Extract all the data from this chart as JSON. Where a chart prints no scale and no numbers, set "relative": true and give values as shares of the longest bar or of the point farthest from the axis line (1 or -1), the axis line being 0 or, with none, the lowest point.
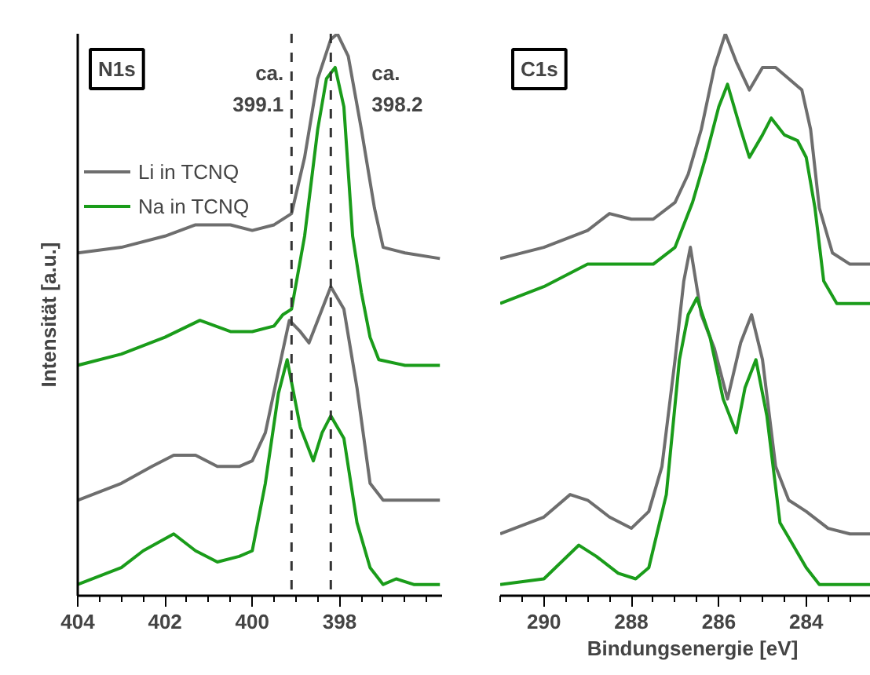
{
  "chart_data": [
    {
      "type": "line",
      "relative": true,
      "title": "N1s",
      "ylabel": "Intensität [a.u.]",
      "legend": "top left",
      "tick_labels": "x",
      "line_style": "solid",
      "xlim": [
        404,
        395.65
      ],
      "xticks": [
        404,
        {
          "value": 403.5,
          "label": null
        },
        {
          "value": 403,
          "label": null
        },
        {
          "value": 402.5,
          "label": null
        },
        402,
        {
          "value": 401.5,
          "label": null
        },
        {
          "value": 401,
          "label": null
        },
        {
          "value": 400.5,
          "label": null
        },
        400,
        {
          "value": 399.5,
          "label": null
        },
        {
          "value": 399,
          "label": null
        },
        {
          "value": 398.5,
          "label": null
        },
        398,
        {
          "value": 397.5,
          "label": null
        },
        {
          "value": 397,
          "label": null
        },
        {
          "value": 396.5,
          "label": null
        },
        {
          "value": 396,
          "label": null
        }
      ],
      "ref_lines": [
        {
          "axis": "x",
          "value": 399.1,
          "label": "ca. 399.1",
          "line_style": "dashed",
          "color": "#333333"
        },
        {
          "axis": "x",
          "value": 398.2,
          "label": "ca. 398.2",
          "line_style": "dashed",
          "color": "#333333"
        }
      ],
      "series": [
        {
          "name": "Li in TCNQ",
          "color": "#6e6e6e",
          "x": [
            404,
            403,
            402,
            401.3,
            400.5,
            400,
            399.5,
            399.1,
            398.8,
            398.5,
            398.2,
            398.05,
            397.8,
            397.5,
            397.2,
            397,
            396.5,
            395.7
          ],
          "values": [
            0.61,
            0.62,
            0.64,
            0.66,
            0.66,
            0.65,
            0.66,
            0.68,
            0.78,
            0.92,
            0.99,
            1.0,
            0.96,
            0.83,
            0.69,
            0.62,
            0.61,
            0.6
          ]
        },
        {
          "name": "Na in TCNQ",
          "color": "#1a9c1a",
          "x": [
            404,
            403,
            402,
            401.2,
            400.5,
            400,
            399.5,
            399.3,
            399.1,
            398.8,
            398.5,
            398.3,
            398.1,
            397.9,
            397.7,
            397.5,
            397.3,
            397.1,
            396.5,
            395.7
          ],
          "values": [
            0.41,
            0.43,
            0.46,
            0.49,
            0.47,
            0.47,
            0.48,
            0.5,
            0.51,
            0.64,
            0.83,
            0.92,
            0.94,
            0.87,
            0.64,
            0.54,
            0.46,
            0.42,
            0.41,
            0.41
          ]
        },
        {
          "color": "#6e6e6e",
          "x": [
            404,
            403,
            402.3,
            401.8,
            401.3,
            400.8,
            400.3,
            400,
            399.7,
            399.4,
            399.15,
            398.9,
            398.7,
            398.5,
            398.2,
            397.9,
            397.6,
            397.3,
            397,
            396.5,
            395.7
          ],
          "values": [
            0.17,
            0.2,
            0.23,
            0.25,
            0.25,
            0.23,
            0.23,
            0.24,
            0.29,
            0.4,
            0.49,
            0.47,
            0.45,
            0.49,
            0.55,
            0.51,
            0.37,
            0.2,
            0.17,
            0.17,
            0.17
          ]
        },
        {
          "color": "#1a9c1a",
          "x": [
            404,
            403,
            402.5,
            401.8,
            401.3,
            400.8,
            400.3,
            400,
            399.7,
            399.4,
            399.2,
            398.9,
            398.6,
            398.4,
            398.2,
            397.9,
            397.6,
            397.3,
            397,
            396.7,
            396.3,
            395.7
          ],
          "values": [
            0.02,
            0.05,
            0.08,
            0.11,
            0.08,
            0.06,
            0.07,
            0.08,
            0.2,
            0.36,
            0.42,
            0.3,
            0.24,
            0.29,
            0.32,
            0.28,
            0.13,
            0.05,
            0.02,
            0.03,
            0.02,
            0.02
          ]
        }
      ]
    },
    {
      "type": "line",
      "relative": true,
      "title": "C1s",
      "xlabel": "Bindungsenergie [eV]",
      "tick_labels": "x",
      "line_style": "solid",
      "xlim": [
        291,
        282.2
      ],
      "xticks": [
        {
          "value": 291,
          "label": null
        },
        {
          "value": 290.5,
          "label": null
        },
        290,
        {
          "value": 289.5,
          "label": null
        },
        {
          "value": 289,
          "label": null
        },
        {
          "value": 288.5,
          "label": null
        },
        288,
        {
          "value": 287.5,
          "label": null
        },
        {
          "value": 287,
          "label": null
        },
        {
          "value": 286.5,
          "label": null
        },
        286,
        {
          "value": 285.5,
          "label": null
        },
        {
          "value": 285,
          "label": null
        },
        {
          "value": 284.5,
          "label": null
        },
        284,
        {
          "value": 283.5,
          "label": null
        },
        {
          "value": 283,
          "label": null
        },
        {
          "value": 282.5,
          "label": null
        }
      ],
      "series": [
        {
          "color": "#6e6e6e",
          "x": [
            291,
            290,
            289,
            288.5,
            288,
            287.5,
            287,
            286.7,
            286.4,
            286.1,
            285.85,
            285.6,
            285.3,
            285,
            284.7,
            284.4,
            284.1,
            283.9,
            283.7,
            283.4,
            283,
            282.2
          ],
          "values": [
            0.6,
            0.62,
            0.65,
            0.68,
            0.67,
            0.67,
            0.7,
            0.75,
            0.83,
            0.94,
            1.0,
            0.95,
            0.9,
            0.94,
            0.94,
            0.92,
            0.9,
            0.83,
            0.69,
            0.61,
            0.59,
            0.59
          ]
        },
        {
          "color": "#1a9c1a",
          "x": [
            291,
            290,
            289,
            288.5,
            288,
            287.5,
            287,
            286.6,
            286.3,
            286,
            285.8,
            285.5,
            285.3,
            285,
            284.8,
            284.5,
            284.2,
            284,
            283.8,
            283.6,
            283.3,
            283,
            282.2
          ],
          "values": [
            0.52,
            0.55,
            0.59,
            0.59,
            0.59,
            0.59,
            0.62,
            0.7,
            0.78,
            0.87,
            0.91,
            0.83,
            0.78,
            0.82,
            0.85,
            0.82,
            0.81,
            0.78,
            0.69,
            0.56,
            0.52,
            0.52,
            0.52
          ]
        },
        {
          "color": "#6e6e6e",
          "x": [
            291,
            290,
            289.4,
            289,
            288.5,
            288,
            287.6,
            287.3,
            287,
            286.8,
            286.65,
            286.4,
            286.1,
            285.8,
            285.5,
            285.25,
            285,
            284.7,
            284.4,
            284,
            283.5,
            283,
            282.2
          ],
          "values": [
            0.11,
            0.14,
            0.18,
            0.17,
            0.14,
            0.12,
            0.15,
            0.23,
            0.42,
            0.56,
            0.62,
            0.5,
            0.44,
            0.35,
            0.45,
            0.5,
            0.42,
            0.23,
            0.17,
            0.15,
            0.12,
            0.11,
            0.11
          ]
        },
        {
          "color": "#1a9c1a",
          "x": [
            291,
            290,
            289.2,
            288.8,
            288.3,
            287.9,
            287.6,
            287.2,
            286.9,
            286.7,
            286.5,
            286.2,
            285.9,
            285.6,
            285.4,
            285.15,
            284.9,
            284.6,
            284.3,
            284,
            283.7,
            283.3,
            282.2
          ],
          "values": [
            0.02,
            0.03,
            0.09,
            0.07,
            0.04,
            0.03,
            0.05,
            0.18,
            0.42,
            0.5,
            0.53,
            0.46,
            0.35,
            0.29,
            0.37,
            0.42,
            0.32,
            0.13,
            0.09,
            0.05,
            0.02,
            0.02,
            0.02
          ]
        }
      ]
    }
  ]
}
